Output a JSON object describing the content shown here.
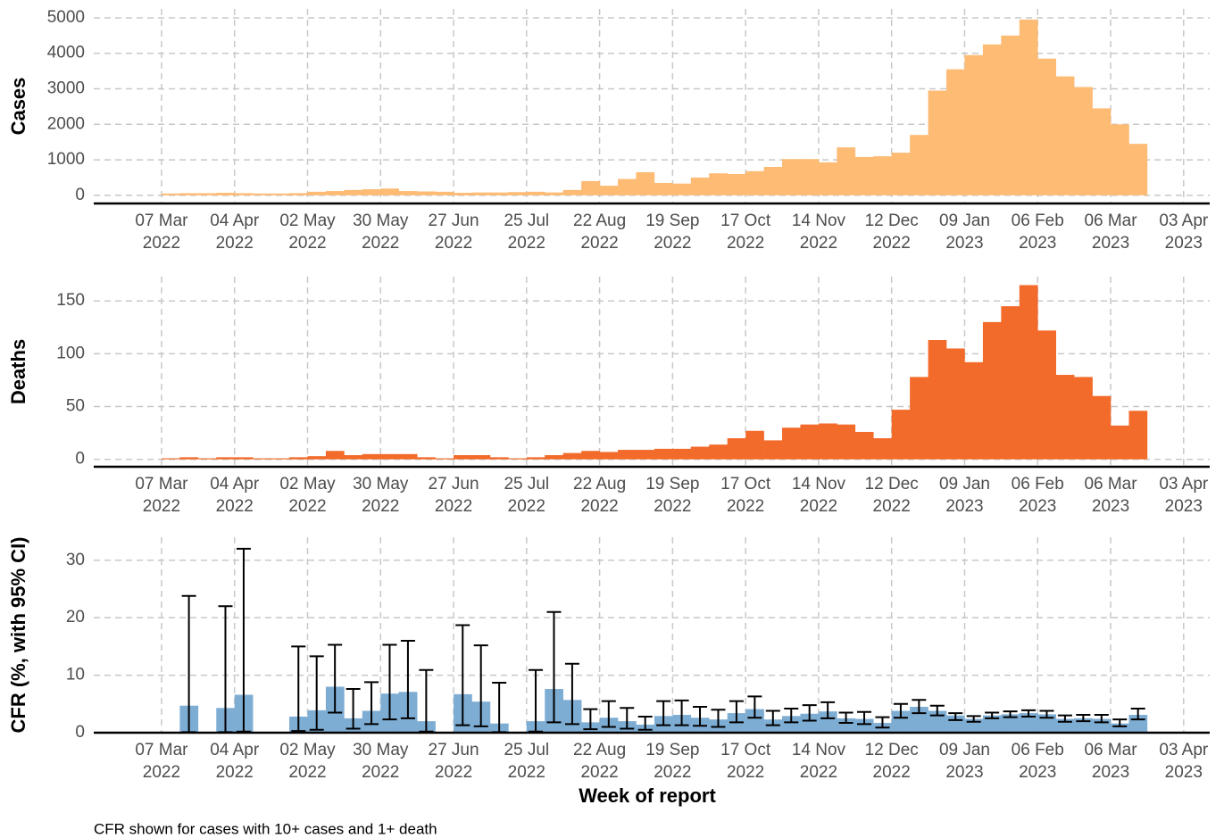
{
  "chart_data": [
    {
      "type": "bar",
      "ylabel": "Cases",
      "color": "#fdbb74",
      "x": [
        "2022-03-07",
        "2022-03-14",
        "2022-03-21",
        "2022-03-28",
        "2022-04-04",
        "2022-04-11",
        "2022-04-18",
        "2022-04-25",
        "2022-05-02",
        "2022-05-09",
        "2022-05-16",
        "2022-05-23",
        "2022-05-30",
        "2022-06-06",
        "2022-06-13",
        "2022-06-20",
        "2022-06-27",
        "2022-07-04",
        "2022-07-11",
        "2022-07-18",
        "2022-07-25",
        "2022-08-01",
        "2022-08-08",
        "2022-08-15",
        "2022-08-22",
        "2022-08-29",
        "2022-09-05",
        "2022-09-12",
        "2022-09-19",
        "2022-09-26",
        "2022-10-03",
        "2022-10-10",
        "2022-10-17",
        "2022-10-24",
        "2022-10-31",
        "2022-11-07",
        "2022-11-14",
        "2022-11-21",
        "2022-11-28",
        "2022-12-05",
        "2022-12-12",
        "2022-12-19",
        "2022-12-26",
        "2023-01-02",
        "2023-01-09",
        "2023-01-16",
        "2023-01-23",
        "2023-01-30",
        "2023-02-06",
        "2023-02-13",
        "2023-02-20",
        "2023-02-27",
        "2023-03-06",
        "2023-03-13"
      ],
      "values": [
        50,
        60,
        60,
        70,
        60,
        50,
        50,
        60,
        100,
        120,
        150,
        170,
        190,
        120,
        110,
        100,
        70,
        80,
        80,
        90,
        100,
        80,
        150,
        400,
        270,
        460,
        650,
        350,
        330,
        500,
        620,
        600,
        680,
        800,
        1020,
        1020,
        930,
        1350,
        1080,
        1100,
        1200,
        1700,
        2950,
        3550,
        3950,
        4250,
        4500,
        4950,
        3850,
        3350,
        3050,
        2450,
        2000,
        1450
      ],
      "xlim": [
        "2022-02-09",
        "2023-04-13"
      ],
      "xticks": [
        {
          "value": "2022-03-07",
          "label": "07 Mar 2022"
        },
        {
          "value": "2022-04-04",
          "label": "04 Apr 2022"
        },
        {
          "value": "2022-05-02",
          "label": "02 May 2022"
        },
        {
          "value": "2022-05-30",
          "label": "30 May 2022"
        },
        {
          "value": "2022-06-27",
          "label": "27 Jun 2022"
        },
        {
          "value": "2022-07-25",
          "label": "25 Jul 2022"
        },
        {
          "value": "2022-08-22",
          "label": "22 Aug 2022"
        },
        {
          "value": "2022-09-19",
          "label": "19 Sep 2022"
        },
        {
          "value": "2022-10-17",
          "label": "17 Oct 2022"
        },
        {
          "value": "2022-11-14",
          "label": "14 Nov 2022"
        },
        {
          "value": "2022-12-12",
          "label": "12 Dec 2022"
        },
        {
          "value": "2023-01-09",
          "label": "09 Jan 2023"
        },
        {
          "value": "2023-02-06",
          "label": "06 Feb 2023"
        },
        {
          "value": "2023-03-06",
          "label": "06 Mar 2023"
        },
        {
          "value": "2023-04-03",
          "label": "03 Apr 2023"
        }
      ],
      "ylim": [
        -230,
        5250
      ],
      "yticks": [
        0,
        1000,
        2000,
        3000,
        4000,
        5000
      ],
      "grid": true
    },
    {
      "type": "bar",
      "ylabel": "Deaths",
      "color": "#f26b2b",
      "x": [
        "2022-03-07",
        "2022-03-14",
        "2022-03-21",
        "2022-03-28",
        "2022-04-04",
        "2022-04-11",
        "2022-04-18",
        "2022-04-25",
        "2022-05-02",
        "2022-05-09",
        "2022-05-16",
        "2022-05-23",
        "2022-05-30",
        "2022-06-06",
        "2022-06-13",
        "2022-06-20",
        "2022-06-27",
        "2022-07-04",
        "2022-07-11",
        "2022-07-18",
        "2022-07-25",
        "2022-08-01",
        "2022-08-08",
        "2022-08-15",
        "2022-08-22",
        "2022-08-29",
        "2022-09-05",
        "2022-09-12",
        "2022-09-19",
        "2022-09-26",
        "2022-10-03",
        "2022-10-10",
        "2022-10-17",
        "2022-10-24",
        "2022-10-31",
        "2022-11-07",
        "2022-11-14",
        "2022-11-21",
        "2022-11-28",
        "2022-12-05",
        "2022-12-12",
        "2022-12-19",
        "2022-12-26",
        "2023-01-02",
        "2023-01-09",
        "2023-01-16",
        "2023-01-23",
        "2023-01-30",
        "2023-02-06",
        "2023-02-13",
        "2023-02-20",
        "2023-02-27",
        "2023-03-06",
        "2023-03-13"
      ],
      "values": [
        1,
        2,
        1,
        2,
        2,
        1,
        1,
        2,
        3,
        8,
        4,
        5,
        5,
        5,
        2,
        1,
        4,
        4,
        2,
        1,
        2,
        4,
        6,
        8,
        7,
        9,
        9,
        10,
        10,
        12,
        14,
        20,
        27,
        18,
        30,
        33,
        34,
        33,
        26,
        20,
        47,
        78,
        113,
        105,
        92,
        130,
        145,
        165,
        122,
        80,
        78,
        60,
        32,
        46
      ],
      "xlim": [
        "2022-02-09",
        "2023-04-13"
      ],
      "xticks": [
        {
          "value": "2022-03-07",
          "label": "07 Mar 2022"
        },
        {
          "value": "2022-04-04",
          "label": "04 Apr 2022"
        },
        {
          "value": "2022-05-02",
          "label": "02 May 2022"
        },
        {
          "value": "2022-05-30",
          "label": "30 May 2022"
        },
        {
          "value": "2022-06-27",
          "label": "27 Jun 2022"
        },
        {
          "value": "2022-07-25",
          "label": "25 Jul 2022"
        },
        {
          "value": "2022-08-22",
          "label": "22 Aug 2022"
        },
        {
          "value": "2022-09-19",
          "label": "19 Sep 2022"
        },
        {
          "value": "2022-10-17",
          "label": "17 Oct 2022"
        },
        {
          "value": "2022-11-14",
          "label": "14 Nov 2022"
        },
        {
          "value": "2022-12-12",
          "label": "12 Dec 2022"
        },
        {
          "value": "2023-01-09",
          "label": "09 Jan 2023"
        },
        {
          "value": "2023-02-06",
          "label": "06 Feb 2023"
        },
        {
          "value": "2023-03-06",
          "label": "06 Mar 2023"
        },
        {
          "value": "2023-04-03",
          "label": "03 Apr 2023"
        }
      ],
      "ylim": [
        -7,
        173
      ],
      "yticks": [
        0,
        50,
        100,
        150
      ],
      "grid": true
    },
    {
      "type": "bar",
      "ylabel": "CFR (%, with 95% CI)",
      "xlabel": "Week of report",
      "color": "#7eadd4",
      "error_color": "#000000",
      "x": [
        "2022-03-07",
        "2022-03-14",
        "2022-03-21",
        "2022-03-28",
        "2022-04-04",
        "2022-04-11",
        "2022-04-18",
        "2022-04-25",
        "2022-05-02",
        "2022-05-09",
        "2022-05-16",
        "2022-05-23",
        "2022-05-30",
        "2022-06-06",
        "2022-06-13",
        "2022-06-20",
        "2022-06-27",
        "2022-07-04",
        "2022-07-11",
        "2022-07-18",
        "2022-07-25",
        "2022-08-01",
        "2022-08-08",
        "2022-08-15",
        "2022-08-22",
        "2022-08-29",
        "2022-09-05",
        "2022-09-12",
        "2022-09-19",
        "2022-09-26",
        "2022-10-03",
        "2022-10-10",
        "2022-10-17",
        "2022-10-24",
        "2022-10-31",
        "2022-11-07",
        "2022-11-14",
        "2022-11-21",
        "2022-11-28",
        "2022-12-05",
        "2022-12-12",
        "2022-12-19",
        "2022-12-26",
        "2023-01-02",
        "2023-01-09",
        "2023-01-16",
        "2023-01-23",
        "2023-01-30",
        "2023-02-06",
        "2023-02-13",
        "2023-02-20",
        "2023-02-27",
        "2023-03-06",
        "2023-03-13"
      ],
      "values": [
        null,
        4.7,
        null,
        4.3,
        6.6,
        null,
        null,
        2.8,
        3.9,
        8.0,
        2.5,
        3.8,
        6.8,
        7.1,
        2.0,
        null,
        6.7,
        5.4,
        1.6,
        null,
        2.0,
        7.6,
        5.7,
        1.8,
        2.6,
        2.0,
        1.4,
        2.9,
        3.1,
        2.6,
        2.3,
        3.4,
        4.1,
        2.3,
        2.9,
        3.3,
        3.7,
        2.5,
        2.4,
        1.7,
        3.8,
        4.5,
        3.8,
        3.0,
        2.4,
        3.0,
        3.2,
        3.4,
        3.2,
        2.4,
        2.5,
        2.4,
        1.6,
        3.1
      ],
      "lower": [
        null,
        0.1,
        null,
        0.1,
        0.2,
        null,
        null,
        0.3,
        0.5,
        3.5,
        0.7,
        1.5,
        2.3,
        2.5,
        0.2,
        null,
        1.3,
        1.1,
        0.1,
        null,
        0.2,
        1.8,
        1.5,
        0.6,
        1.0,
        0.7,
        0.5,
        1.3,
        1.3,
        1.2,
        1.0,
        1.8,
        2.6,
        1.3,
        1.8,
        2.1,
        2.5,
        1.7,
        1.5,
        0.9,
        2.6,
        3.4,
        3.0,
        2.2,
        1.9,
        2.5,
        2.7,
        2.8,
        2.6,
        1.9,
        2.0,
        1.8,
        1.1,
        2.3
      ],
      "upper": [
        null,
        23.8,
        null,
        22,
        32,
        null,
        null,
        15,
        13.3,
        15.3,
        7.6,
        8.8,
        15.3,
        16,
        10.9,
        null,
        18.7,
        15.2,
        8.7,
        null,
        10.9,
        21,
        12,
        4.1,
        5.5,
        4.3,
        2.8,
        5.5,
        5.6,
        4.5,
        4.0,
        5.5,
        6.3,
        3.8,
        4.2,
        4.8,
        5.3,
        3.5,
        3.6,
        2.7,
        5.0,
        5.7,
        4.7,
        3.4,
        2.9,
        3.5,
        3.7,
        3.9,
        3.8,
        3.0,
        3.1,
        3.1,
        2.3,
        4.2
      ],
      "xlim": [
        "2022-02-09",
        "2023-04-13"
      ],
      "xticks": [
        {
          "value": "2022-03-07",
          "label": "07 Mar 2022"
        },
        {
          "value": "2022-04-04",
          "label": "04 Apr 2022"
        },
        {
          "value": "2022-05-02",
          "label": "02 May 2022"
        },
        {
          "value": "2022-05-30",
          "label": "30 May 2022"
        },
        {
          "value": "2022-06-27",
          "label": "27 Jun 2022"
        },
        {
          "value": "2022-07-25",
          "label": "25 Jul 2022"
        },
        {
          "value": "2022-08-22",
          "label": "22 Aug 2022"
        },
        {
          "value": "2022-09-19",
          "label": "19 Sep 2022"
        },
        {
          "value": "2022-10-17",
          "label": "17 Oct 2022"
        },
        {
          "value": "2022-11-14",
          "label": "14 Nov 2022"
        },
        {
          "value": "2022-12-12",
          "label": "12 Dec 2022"
        },
        {
          "value": "2023-01-09",
          "label": "09 Jan 2023"
        },
        {
          "value": "2023-02-06",
          "label": "06 Feb 2023"
        },
        {
          "value": "2023-03-06",
          "label": "06 Mar 2023"
        },
        {
          "value": "2023-04-03",
          "label": "03 Apr 2023"
        }
      ],
      "ylim": [
        0,
        34
      ],
      "yticks": [
        0,
        10,
        20,
        30
      ],
      "grid": true
    }
  ],
  "note": "CFR shown for cases with 10+ cases and 1+ death"
}
